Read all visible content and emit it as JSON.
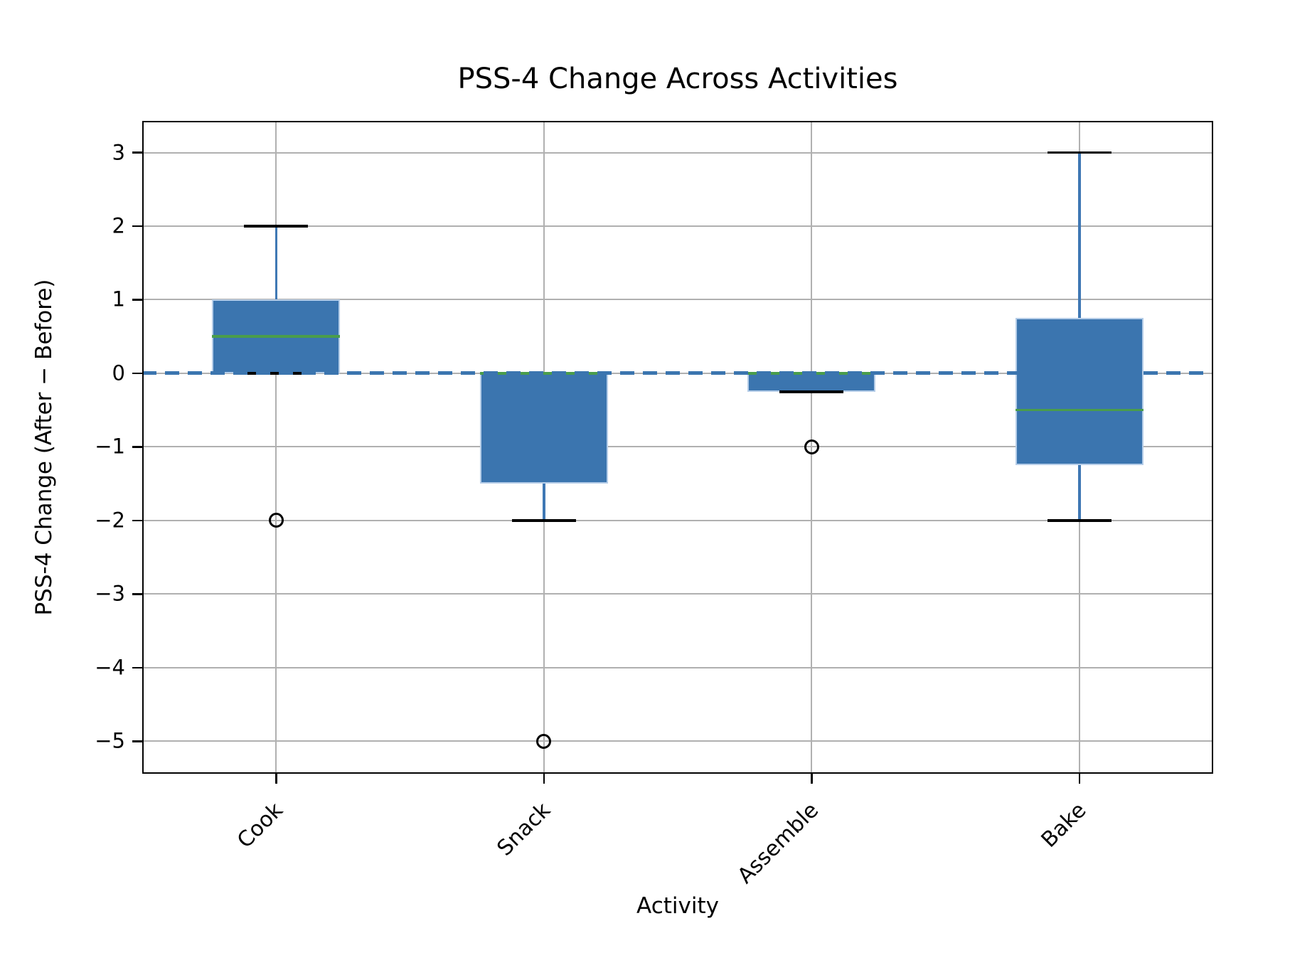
{
  "chart_data": {
    "type": "boxplot",
    "title": "PSS-4 Change Across Activities",
    "xlabel": "Activity",
    "ylabel": "PSS-4 Change (After − Before)",
    "categories": [
      "Cook",
      "Snack",
      "Assemble",
      "Bake"
    ],
    "ylim": [
      -5.44,
      3.43
    ],
    "yticks": [
      {
        "value": 3,
        "label": "3"
      },
      {
        "value": 2,
        "label": "2"
      },
      {
        "value": 1,
        "label": "1"
      },
      {
        "value": 0,
        "label": "0"
      },
      {
        "value": -1,
        "label": "−1"
      },
      {
        "value": -2,
        "label": "−2"
      },
      {
        "value": -3,
        "label": "−3"
      },
      {
        "value": -4,
        "label": "−4"
      },
      {
        "value": -5,
        "label": "−5"
      }
    ],
    "grid": true,
    "legend": null,
    "zero_line": {
      "y": 0,
      "style": "dashed"
    },
    "series": [
      {
        "label": "Cook",
        "whisker_low": 0,
        "q1": 0,
        "median": 0.5,
        "q3": 1,
        "whisker_high": 2,
        "outliers": [
          -2
        ]
      },
      {
        "label": "Snack",
        "whisker_low": -2,
        "q1": -1.5,
        "median": 0,
        "q3": 0,
        "whisker_high": 0,
        "outliers": [
          -5
        ]
      },
      {
        "label": "Assemble",
        "whisker_low": -0.25,
        "q1": -0.25,
        "median": 0,
        "q3": 0,
        "whisker_high": 0,
        "outliers": [
          -1
        ]
      },
      {
        "label": "Bake",
        "whisker_low": -2,
        "q1": -1.25,
        "median": -0.5,
        "q3": 0.75,
        "whisker_high": 3,
        "outliers": []
      }
    ],
    "colors": {
      "box_fill": "#3b75af",
      "box_edge": "#b5cde8",
      "whisker": "#3f78b4",
      "median": "#4a9d4b",
      "cap": "#000000",
      "zero_line": "#3b75af",
      "grid": "#b0b0b0",
      "frame": "#000000",
      "outlier_edge": "#000000",
      "background": "#ffffff"
    }
  }
}
